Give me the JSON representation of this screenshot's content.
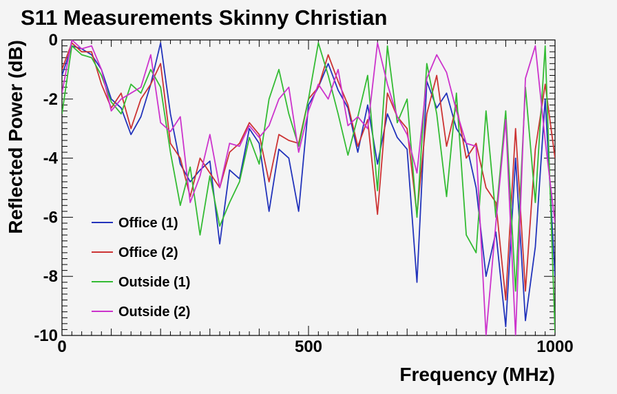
{
  "chart_data": {
    "type": "line",
    "title": "S11 Measurements Skinny Christian",
    "xlabel": "Frequency (MHz)",
    "ylabel": "Reflected Power (dB)",
    "xlim": [
      0,
      1000
    ],
    "ylim": [
      -10,
      0
    ],
    "x_ticks": [
      "0",
      "500",
      "1000"
    ],
    "y_ticks": [
      "0",
      "-2",
      "-4",
      "-6",
      "-8",
      "-10"
    ],
    "grid": false,
    "legend_position": "lower-left",
    "x": [
      0,
      20,
      40,
      60,
      80,
      100,
      120,
      140,
      160,
      180,
      200,
      220,
      240,
      260,
      280,
      300,
      320,
      340,
      360,
      380,
      400,
      420,
      440,
      460,
      480,
      500,
      520,
      540,
      560,
      580,
      600,
      620,
      640,
      660,
      680,
      700,
      720,
      740,
      760,
      780,
      800,
      820,
      840,
      860,
      880,
      900,
      920,
      940,
      960,
      980,
      1000
    ],
    "series": [
      {
        "name": "Office (1)",
        "color": "#2233bb",
        "values": [
          -1.2,
          -0.2,
          -0.3,
          -0.5,
          -1.0,
          -2.0,
          -2.3,
          -3.2,
          -2.6,
          -1.5,
          -0.1,
          -2.5,
          -4.2,
          -4.8,
          -4.4,
          -4.1,
          -6.9,
          -4.4,
          -4.7,
          -3.0,
          -3.5,
          -5.8,
          -3.7,
          -4.0,
          -5.8,
          -2.2,
          -1.6,
          -0.8,
          -1.7,
          -2.3,
          -3.8,
          -2.2,
          -4.2,
          -2.5,
          -3.3,
          -3.7,
          -8.2,
          -1.4,
          -2.3,
          -1.8,
          -3.0,
          -3.5,
          -5.0,
          -8.0,
          -6.5,
          -9.7,
          -4.0,
          -9.5,
          -7.0,
          -2.0,
          -8.0
        ]
      },
      {
        "name": "Office (2)",
        "color": "#cc3333",
        "values": [
          -1.0,
          -0.1,
          -0.4,
          -0.4,
          -1.5,
          -2.3,
          -1.8,
          -3.0,
          -2.0,
          -1.5,
          -0.8,
          -3.5,
          -4.0,
          -5.3,
          -4.0,
          -4.5,
          -5.0,
          -3.8,
          -3.5,
          -2.8,
          -3.2,
          -4.8,
          -3.2,
          -3.4,
          -3.5,
          -2.0,
          -1.6,
          -0.5,
          -1.4,
          -2.2,
          -3.6,
          -2.7,
          -5.9,
          -1.8,
          -2.6,
          -3.0,
          -5.9,
          -2.5,
          -1.2,
          -3.6,
          -2.2,
          -4.0,
          -3.5,
          -5.0,
          -5.5,
          -8.8,
          -3.0,
          -8.5,
          -3.7,
          -1.5,
          -4.0
        ]
      },
      {
        "name": "Outside (1)",
        "color": "#33bb33",
        "values": [
          -2.5,
          -0.2,
          -0.5,
          -0.6,
          -1.2,
          -2.1,
          -2.5,
          -1.5,
          -1.8,
          -1.0,
          -1.6,
          -3.8,
          -5.6,
          -4.3,
          -6.6,
          -4.6,
          -6.3,
          -5.5,
          -4.8,
          -3.3,
          -4.2,
          -2.0,
          -1.0,
          -2.5,
          -3.6,
          -2.0,
          -0.1,
          -1.2,
          -2.5,
          -3.9,
          -2.6,
          -1.2,
          -5.1,
          -0.2,
          -2.8,
          -2.0,
          -6.0,
          -0.8,
          -2.5,
          -5.3,
          -1.8,
          -6.6,
          -7.2,
          -2.4,
          -6.0,
          -2.4,
          -8.5,
          -1.6,
          -5.5,
          -0.2,
          -9.9
        ]
      },
      {
        "name": "Outside (2)",
        "color": "#cc33cc",
        "values": [
          -1.8,
          -0.0,
          -0.3,
          -0.2,
          -1.0,
          -2.4,
          -2.0,
          -1.8,
          -1.6,
          -0.5,
          -2.8,
          -3.1,
          -2.6,
          -5.5,
          -4.6,
          -3.2,
          -5.0,
          -3.5,
          -3.6,
          -2.9,
          -3.3,
          -2.9,
          -2.0,
          -1.6,
          -3.8,
          -2.4,
          -1.5,
          -2.0,
          -1.0,
          -2.9,
          -2.6,
          -3.0,
          -0.1,
          -1.5,
          -2.6,
          -3.2,
          -4.5,
          -1.3,
          -0.5,
          -1.1,
          -2.4,
          -3.5,
          -3.6,
          -10.0,
          -6.2,
          -2.7,
          -10.0,
          -1.3,
          -0.2,
          -3.4,
          -6.2
        ]
      }
    ]
  }
}
